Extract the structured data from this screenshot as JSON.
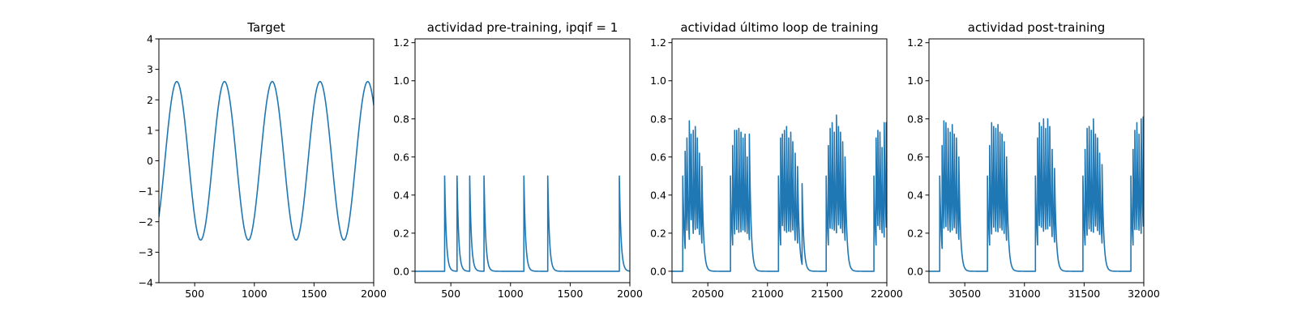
{
  "colors": {
    "series": "#1f77b4",
    "axes": "#000000",
    "background": "#ffffff"
  },
  "chart_data": [
    {
      "type": "line",
      "title": "Target",
      "xlabel": "",
      "ylabel": "",
      "xlim": [
        200,
        2000
      ],
      "ylim": [
        -4,
        4
      ],
      "xticks": [
        500,
        1000,
        1500,
        2000
      ],
      "xtick_labels": [
        "500",
        "1000",
        "1500",
        "2000"
      ],
      "yticks": [
        -4,
        -3,
        -2,
        -1,
        0,
        1,
        2,
        3,
        4
      ],
      "ytick_labels": [
        "−4",
        "−3",
        "−2",
        "−1",
        "0",
        "1",
        "2",
        "3",
        "4"
      ],
      "grid": false,
      "series": [
        {
          "kind": "sine",
          "amplitude": 2.6,
          "period": 400,
          "peaks": [
            350,
            750,
            1150,
            1550,
            1950
          ],
          "x_start": 200,
          "x_end": 2000
        }
      ]
    },
    {
      "type": "line",
      "title": "actividad pre-training, ipqif = 1",
      "xlabel": "",
      "ylabel": "",
      "xlim": [
        200,
        2000
      ],
      "ylim": [
        -0.06,
        1.22
      ],
      "xticks": [
        500,
        1000,
        1500,
        2000
      ],
      "xtick_labels": [
        "500",
        "1000",
        "1500",
        "2000"
      ],
      "yticks": [
        0.0,
        0.2,
        0.4,
        0.6,
        0.8,
        1.0,
        1.2
      ],
      "ytick_labels": [
        "0.0",
        "0.2",
        "0.4",
        "0.6",
        "0.8",
        "1.0",
        "1.2"
      ],
      "grid": false,
      "series": [
        {
          "kind": "spikes",
          "x_start": 200,
          "x_end": 2000,
          "decay": 14,
          "spike_times": [
            448,
            552,
            658,
            778,
            1112,
            1312,
            1912
          ],
          "spike_heights": [
            0.5,
            0.5,
            0.5,
            0.5,
            0.5,
            0.5,
            0.5
          ]
        }
      ]
    },
    {
      "type": "line",
      "title": "actividad último loop de training",
      "xlabel": "",
      "ylabel": "",
      "xlim": [
        20200,
        22000
      ],
      "ylim": [
        -0.06,
        1.22
      ],
      "xticks": [
        20500,
        21000,
        21500,
        22000
      ],
      "xtick_labels": [
        "20500",
        "21000",
        "21500",
        "22000"
      ],
      "yticks": [
        0.0,
        0.2,
        0.4,
        0.6,
        0.8,
        1.0,
        1.2
      ],
      "ytick_labels": [
        "0.0",
        "0.2",
        "0.4",
        "0.6",
        "0.8",
        "1.0",
        "1.2"
      ],
      "grid": false,
      "series": [
        {
          "kind": "spikes",
          "x_start": 20200,
          "x_end": 22000,
          "decay": 14,
          "spike_times": [
            20290,
            20310,
            20325,
            20345,
            20360,
            20378,
            20395,
            20412,
            20430,
            20450,
            20690,
            20708,
            20725,
            20742,
            20760,
            20778,
            20795,
            20812,
            20830,
            20848,
            21092,
            21110,
            21125,
            21142,
            21160,
            21178,
            21195,
            21212,
            21232,
            21252,
            21290,
            21492,
            21510,
            21525,
            21542,
            21560,
            21578,
            21595,
            21612,
            21630,
            21650,
            21892,
            21910,
            21925,
            21942,
            21960,
            21978,
            21995
          ],
          "spike_heights": [
            0.5,
            0.63,
            0.7,
            0.79,
            0.72,
            0.74,
            0.76,
            0.7,
            0.62,
            0.55,
            0.5,
            0.66,
            0.74,
            0.74,
            0.75,
            0.73,
            0.7,
            0.72,
            0.6,
            0.72,
            0.5,
            0.7,
            0.72,
            0.74,
            0.76,
            0.7,
            0.73,
            0.68,
            0.62,
            0.55,
            0.46,
            0.5,
            0.66,
            0.75,
            0.78,
            0.73,
            0.82,
            0.76,
            0.73,
            0.68,
            0.6,
            0.5,
            0.7,
            0.74,
            0.73,
            0.65,
            0.78,
            0.78
          ]
        }
      ]
    },
    {
      "type": "line",
      "title": "actividad post-training",
      "xlabel": "",
      "ylabel": "",
      "xlim": [
        30200,
        32000
      ],
      "ylim": [
        -0.06,
        1.22
      ],
      "xticks": [
        30500,
        31000,
        31500,
        32000
      ],
      "xtick_labels": [
        "30500",
        "31000",
        "31500",
        "32000"
      ],
      "yticks": [
        0.0,
        0.2,
        0.4,
        0.6,
        0.8,
        1.0,
        1.2
      ],
      "ytick_labels": [
        "0.0",
        "0.2",
        "0.4",
        "0.6",
        "0.8",
        "1.0",
        "1.2"
      ],
      "grid": false,
      "series": [
        {
          "kind": "spikes",
          "x_start": 30200,
          "x_end": 32000,
          "decay": 14,
          "spike_times": [
            30290,
            30310,
            30325,
            30342,
            30360,
            30378,
            30395,
            30412,
            30430,
            30450,
            30690,
            30708,
            30725,
            30742,
            30760,
            30778,
            30795,
            30812,
            30830,
            30850,
            31092,
            31110,
            31125,
            31142,
            31160,
            31178,
            31195,
            31212,
            31232,
            31252,
            31490,
            31508,
            31525,
            31542,
            31560,
            31578,
            31595,
            31612,
            31630,
            31650,
            31892,
            31910,
            31925,
            31942,
            31960,
            31978,
            31995
          ],
          "spike_heights": [
            0.5,
            0.66,
            0.79,
            0.78,
            0.75,
            0.73,
            0.77,
            0.72,
            0.7,
            0.6,
            0.5,
            0.66,
            0.78,
            0.76,
            0.75,
            0.77,
            0.73,
            0.72,
            0.68,
            0.6,
            0.5,
            0.7,
            0.78,
            0.76,
            0.8,
            0.75,
            0.8,
            0.76,
            0.64,
            0.54,
            0.5,
            0.64,
            0.75,
            0.76,
            0.74,
            0.8,
            0.72,
            0.7,
            0.62,
            0.56,
            0.5,
            0.64,
            0.74,
            0.78,
            0.72,
            0.8,
            0.81
          ]
        }
      ]
    }
  ]
}
